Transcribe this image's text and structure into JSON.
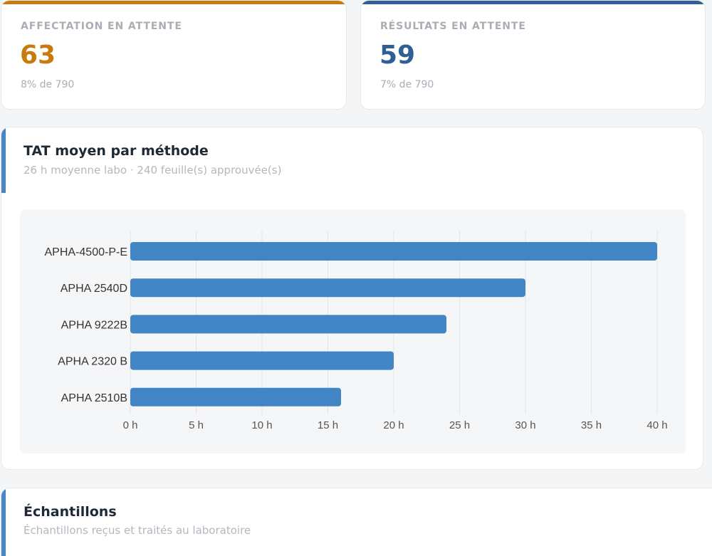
{
  "stats": {
    "left": {
      "label": "AFFECTATION EN ATTENTE",
      "value": "63",
      "sub": "8% de 790",
      "color": "#c97a0e"
    },
    "right": {
      "label": "RÉSULTATS EN ATTENTE",
      "value": "59",
      "sub": "7% de 790",
      "color": "#2f5f94"
    }
  },
  "tat_section": {
    "title": "TAT moyen par méthode",
    "subtitle": "26 h moyenne labo · 240 feuille(s) approuvée(s)"
  },
  "samples_section": {
    "title": "Échantillons",
    "subtitle": "Échantillons reçus et traités au laboratoire"
  },
  "chart_data": {
    "type": "bar",
    "orientation": "horizontal",
    "categories": [
      "APHA-4500-P-E",
      "APHA 2540D",
      "APHA 9222B",
      "APHA 2320 B",
      "APHA 2510B"
    ],
    "values": [
      40,
      30,
      24,
      20,
      16
    ],
    "unit": "h",
    "xlim": [
      0,
      40
    ],
    "xticks": [
      "0 h",
      "5 h",
      "10 h",
      "15 h",
      "20 h",
      "25 h",
      "30 h",
      "35 h",
      "40 h"
    ],
    "grid": true,
    "bar_color": "#4285c4"
  }
}
